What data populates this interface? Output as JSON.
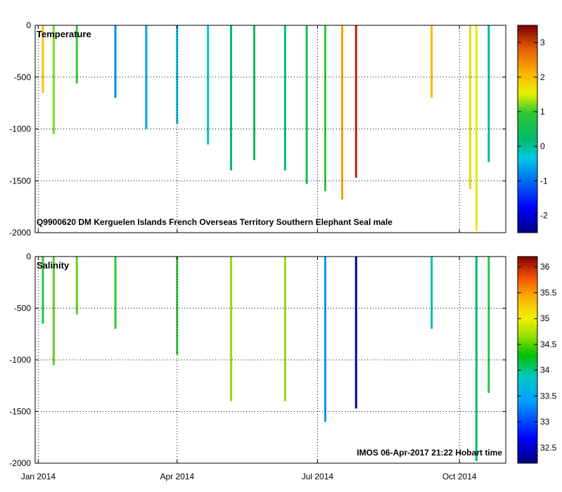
{
  "chart_data": [
    {
      "type": "heatmap",
      "title": "Temperature",
      "annotation": "Q9900620 DM Kerguelen Islands French Overseas Territory Southern Elephant Seal  male",
      "xlabel": "",
      "ylabel": "",
      "y_ticks": [
        "0",
        "-500",
        "-1000",
        "-1500",
        "-2000"
      ],
      "ylim": [
        -2000,
        0
      ],
      "colorbar_ticks": [
        "3",
        "2",
        "1",
        "0",
        "-1",
        "-2"
      ],
      "colorbar_range": [
        -2.5,
        3.5
      ],
      "grid": "dotted",
      "profiles": [
        {
          "day": 3,
          "depth": 650,
          "value": 2.0
        },
        {
          "day": 10,
          "depth": 1050,
          "value": 1.2
        },
        {
          "day": 25,
          "depth": 560,
          "value": 1.0
        },
        {
          "day": 50,
          "depth": 700,
          "value": -0.8
        },
        {
          "day": 70,
          "depth": 1000,
          "value": -0.6
        },
        {
          "day": 90,
          "depth": 950,
          "value": -0.5
        },
        {
          "day": 110,
          "depth": 1150,
          "value": -0.2
        },
        {
          "day": 125,
          "depth": 1400,
          "value": 0.2
        },
        {
          "day": 140,
          "depth": 1300,
          "value": 0.3
        },
        {
          "day": 160,
          "depth": 1400,
          "value": 0.1
        },
        {
          "day": 174,
          "depth": 1530,
          "value": 0.5
        },
        {
          "day": 186,
          "depth": 1600,
          "value": 0.9
        },
        {
          "day": 197,
          "depth": 1680,
          "value": 2.3
        },
        {
          "day": 206,
          "depth": 1470,
          "value": 3.2
        },
        {
          "day": 255,
          "depth": 700,
          "value": 2.1
        },
        {
          "day": 280,
          "depth": 1580,
          "value": 1.8
        },
        {
          "day": 284,
          "depth": 1980,
          "value": 1.5
        },
        {
          "day": 292,
          "depth": 1320,
          "value": 0.0
        }
      ]
    },
    {
      "type": "heatmap",
      "title": "Salinity",
      "annotation": "IMOS 06-Apr-2017 21:22 Hobart time",
      "xlabel": "",
      "ylabel": "",
      "y_ticks": [
        "0",
        "-500",
        "-1000",
        "-1500",
        "-2000"
      ],
      "ylim": [
        -2000,
        0
      ],
      "colorbar_ticks": [
        "36",
        "35.5",
        "35",
        "34.5",
        "34",
        "33.5",
        "33",
        "32.5"
      ],
      "colorbar_range": [
        32.2,
        36.2
      ],
      "grid": "dotted",
      "profiles": [
        {
          "day": 3,
          "depth": 650,
          "value": 34.4
        },
        {
          "day": 10,
          "depth": 1050,
          "value": 34.6
        },
        {
          "day": 25,
          "depth": 560,
          "value": 34.6
        },
        {
          "day": 50,
          "depth": 700,
          "value": 34.5
        },
        {
          "day": 90,
          "depth": 950,
          "value": 34.5
        },
        {
          "day": 125,
          "depth": 1400,
          "value": 34.7
        },
        {
          "day": 160,
          "depth": 1400,
          "value": 34.7
        },
        {
          "day": 186,
          "depth": 1600,
          "value": 33.4
        },
        {
          "day": 206,
          "depth": 1470,
          "value": 32.3
        },
        {
          "day": 255,
          "depth": 700,
          "value": 33.8
        },
        {
          "day": 284,
          "depth": 1980,
          "value": 34.0
        },
        {
          "day": 292,
          "depth": 1320,
          "value": 34.4
        }
      ]
    }
  ],
  "x_axis": {
    "ticks": [
      {
        "label": "Jan 2014",
        "day": 0
      },
      {
        "label": "Apr 2014",
        "day": 90
      },
      {
        "label": "Jul 2014",
        "day": 181
      },
      {
        "label": "Oct 2014",
        "day": 273
      }
    ],
    "range_days": [
      -2,
      303
    ]
  },
  "colors": {
    "axis": "#000000",
    "grid": "#000000",
    "background": "#ffffff"
  }
}
